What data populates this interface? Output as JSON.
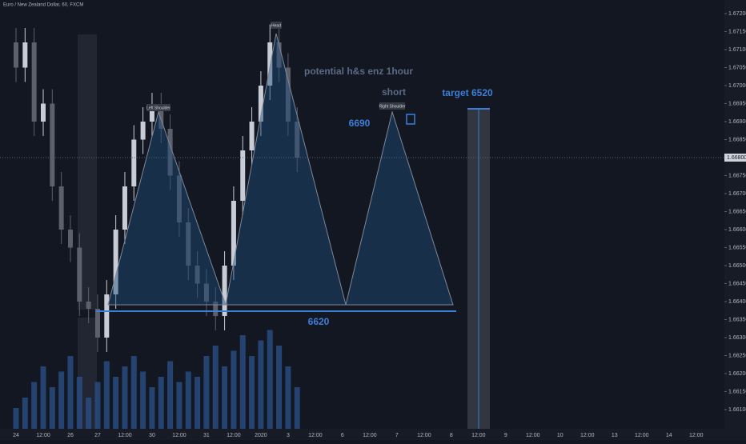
{
  "chart_data": {
    "type": "candlestick",
    "title": "Euro / New Zealand Dollar, 60, FXCM",
    "annotations": {
      "pattern_title": "potential h&s enz 1hour",
      "short": "short",
      "entry": "6690",
      "target": "target 6520",
      "neckline": "6620",
      "left_shoulder": "Left Shoulder",
      "head": "Head",
      "right_shoulder": "Right Shoulder"
    },
    "last_price": 1.668,
    "last_price_label": "1.66800",
    "up_color": "#c8ccd6",
    "down_color": "#5d606b",
    "volume_color": "#2a4f86",
    "categories": [
      "24",
      null,
      null,
      "12:00",
      null,
      null,
      "26",
      null,
      null,
      "27",
      null,
      null,
      "12:00",
      null,
      null,
      "30",
      null,
      null,
      "12:00",
      null,
      null,
      "31",
      null,
      null,
      "12:00",
      null,
      null,
      "2020",
      null,
      null,
      "3",
      null,
      null,
      "12:00",
      null,
      null,
      "6",
      null,
      null,
      "12:00",
      null,
      null,
      "7",
      null,
      null,
      "12:00",
      null,
      null,
      "8",
      null,
      null,
      "12:00",
      null,
      null,
      "9",
      null,
      null,
      "12:00",
      null,
      null,
      "10",
      null,
      null,
      "12:00",
      null,
      null,
      "13",
      null,
      null,
      "12:00",
      null,
      null,
      "14",
      null,
      null,
      "12:00",
      null,
      null
    ],
    "open": [
      1.6712,
      1.6705,
      1.6712,
      1.669,
      1.6695,
      1.6672,
      1.666,
      1.6655,
      1.664,
      1.6638,
      1.663,
      1.6642,
      1.666,
      1.6672,
      1.6685,
      1.669,
      1.6694,
      1.6688,
      1.6675,
      1.6662,
      1.665,
      1.6645,
      1.664,
      1.6636,
      1.665,
      1.6668,
      1.6682,
      1.669,
      1.67,
      1.6712,
      1.6705,
      1.669,
      null,
      null,
      null,
      null,
      null,
      null,
      null,
      null,
      null,
      null,
      null,
      null,
      null,
      null,
      null,
      null,
      null,
      null,
      null,
      null,
      null,
      null,
      null,
      null,
      null,
      null,
      null,
      null,
      null,
      null,
      null,
      null,
      null,
      null,
      null,
      null,
      null,
      null,
      null,
      null,
      null,
      null,
      null,
      null,
      null,
      null
    ],
    "high": [
      1.6716,
      1.6716,
      1.6716,
      1.6699,
      1.6699,
      1.6676,
      1.6664,
      1.6659,
      1.6644,
      1.6642,
      1.6646,
      1.6664,
      1.6676,
      1.6689,
      1.6694,
      1.6698,
      1.6698,
      1.6692,
      1.6679,
      1.6666,
      1.6654,
      1.6649,
      1.6644,
      1.6654,
      1.6672,
      1.6686,
      1.6694,
      1.6704,
      1.6717,
      1.6716,
      1.6709,
      1.6694,
      null,
      null,
      null,
      null,
      null,
      null,
      null,
      null,
      null,
      null,
      null,
      null,
      null,
      null,
      null,
      null,
      null,
      null,
      null,
      null,
      null,
      null,
      null,
      null,
      null,
      null,
      null,
      null,
      null,
      null,
      null,
      null,
      null,
      null,
      null,
      null,
      null,
      null,
      null,
      null,
      null,
      null,
      null,
      null,
      null,
      null
    ],
    "low": [
      1.6701,
      1.6701,
      1.6686,
      1.6686,
      1.6668,
      1.6656,
      1.6651,
      1.6636,
      1.6634,
      1.6626,
      1.6626,
      1.6638,
      1.6656,
      1.6668,
      1.6681,
      1.6686,
      1.6684,
      1.6671,
      1.6658,
      1.6646,
      1.6641,
      1.6636,
      1.6632,
      1.6632,
      1.6646,
      1.6664,
      1.6678,
      1.6686,
      1.6696,
      1.6701,
      1.6686,
      1.6676,
      null,
      null,
      null,
      null,
      null,
      null,
      null,
      null,
      null,
      null,
      null,
      null,
      null,
      null,
      null,
      null,
      null,
      null,
      null,
      null,
      null,
      null,
      null,
      null,
      null,
      null,
      null,
      null,
      null,
      null,
      null,
      null,
      null,
      null,
      null,
      null,
      null,
      null,
      null,
      null,
      null,
      null,
      null,
      null,
      null,
      null
    ],
    "close": [
      1.6705,
      1.6712,
      1.669,
      1.6695,
      1.6672,
      1.666,
      1.6655,
      1.664,
      1.6638,
      1.663,
      1.6642,
      1.666,
      1.6672,
      1.6685,
      1.669,
      1.6694,
      1.6688,
      1.6675,
      1.6662,
      1.665,
      1.6645,
      1.664,
      1.6636,
      1.665,
      1.6668,
      1.6682,
      1.669,
      1.67,
      1.6712,
      1.6705,
      1.669,
      1.668,
      null,
      null,
      null,
      null,
      null,
      null,
      null,
      null,
      null,
      null,
      null,
      null,
      null,
      null,
      null,
      null,
      null,
      null,
      null,
      null,
      null,
      null,
      null,
      null,
      null,
      null,
      null,
      null,
      null,
      null,
      null,
      null,
      null,
      null,
      null,
      null,
      null,
      null,
      null,
      null,
      null,
      null,
      null,
      null,
      null,
      null
    ],
    "volume": [
      20,
      30,
      45,
      60,
      40,
      55,
      70,
      50,
      30,
      45,
      65,
      50,
      60,
      70,
      55,
      40,
      50,
      65,
      45,
      55,
      50,
      70,
      80,
      60,
      75,
      90,
      70,
      85,
      95,
      80,
      60,
      40,
      null,
      null,
      null,
      null,
      null,
      null,
      null,
      null,
      null,
      null,
      null,
      null,
      null,
      null,
      null,
      null,
      null,
      null,
      null,
      null,
      null,
      null,
      null,
      null,
      null,
      null,
      null,
      null,
      null,
      null,
      null,
      null,
      null,
      null,
      null,
      null,
      null,
      null,
      null,
      null,
      null,
      null,
      null,
      null,
      null,
      null
    ],
    "ylim": [
      1.6606,
      1.6724
    ],
    "yticks": [
      {
        "value": 1.661,
        "label": "1.66100"
      },
      {
        "value": 1.6615,
        "label": "1.66150"
      },
      {
        "value": 1.662,
        "label": "1.66200"
      },
      {
        "value": 1.6625,
        "label": "1.66250"
      },
      {
        "value": 1.663,
        "label": "1.66300"
      },
      {
        "value": 1.6635,
        "label": "1.66350"
      },
      {
        "value": 1.664,
        "label": "1.66400"
      },
      {
        "value": 1.6645,
        "label": "1.66450"
      },
      {
        "value": 1.665,
        "label": "1.66500"
      },
      {
        "value": 1.6655,
        "label": "1.66550"
      },
      {
        "value": 1.666,
        "label": "1.66600"
      },
      {
        "value": 1.6665,
        "label": "1.66650"
      },
      {
        "value": 1.667,
        "label": "1.66700"
      },
      {
        "value": 1.6675,
        "label": "1.66750"
      },
      {
        "value": 1.668,
        "label": "1.66800"
      },
      {
        "value": 1.6685,
        "label": "1.66850"
      },
      {
        "value": 1.669,
        "label": "1.66900"
      },
      {
        "value": 1.6695,
        "label": "1.66950"
      },
      {
        "value": 1.67,
        "label": "1.67000"
      },
      {
        "value": 1.6705,
        "label": "1.67050"
      },
      {
        "value": 1.671,
        "label": "1.67100"
      },
      {
        "value": 1.6715,
        "label": "1.67150"
      },
      {
        "value": 1.672,
        "label": "1.67200"
      }
    ],
    "y2lim": [
      0,
      100
    ]
  }
}
